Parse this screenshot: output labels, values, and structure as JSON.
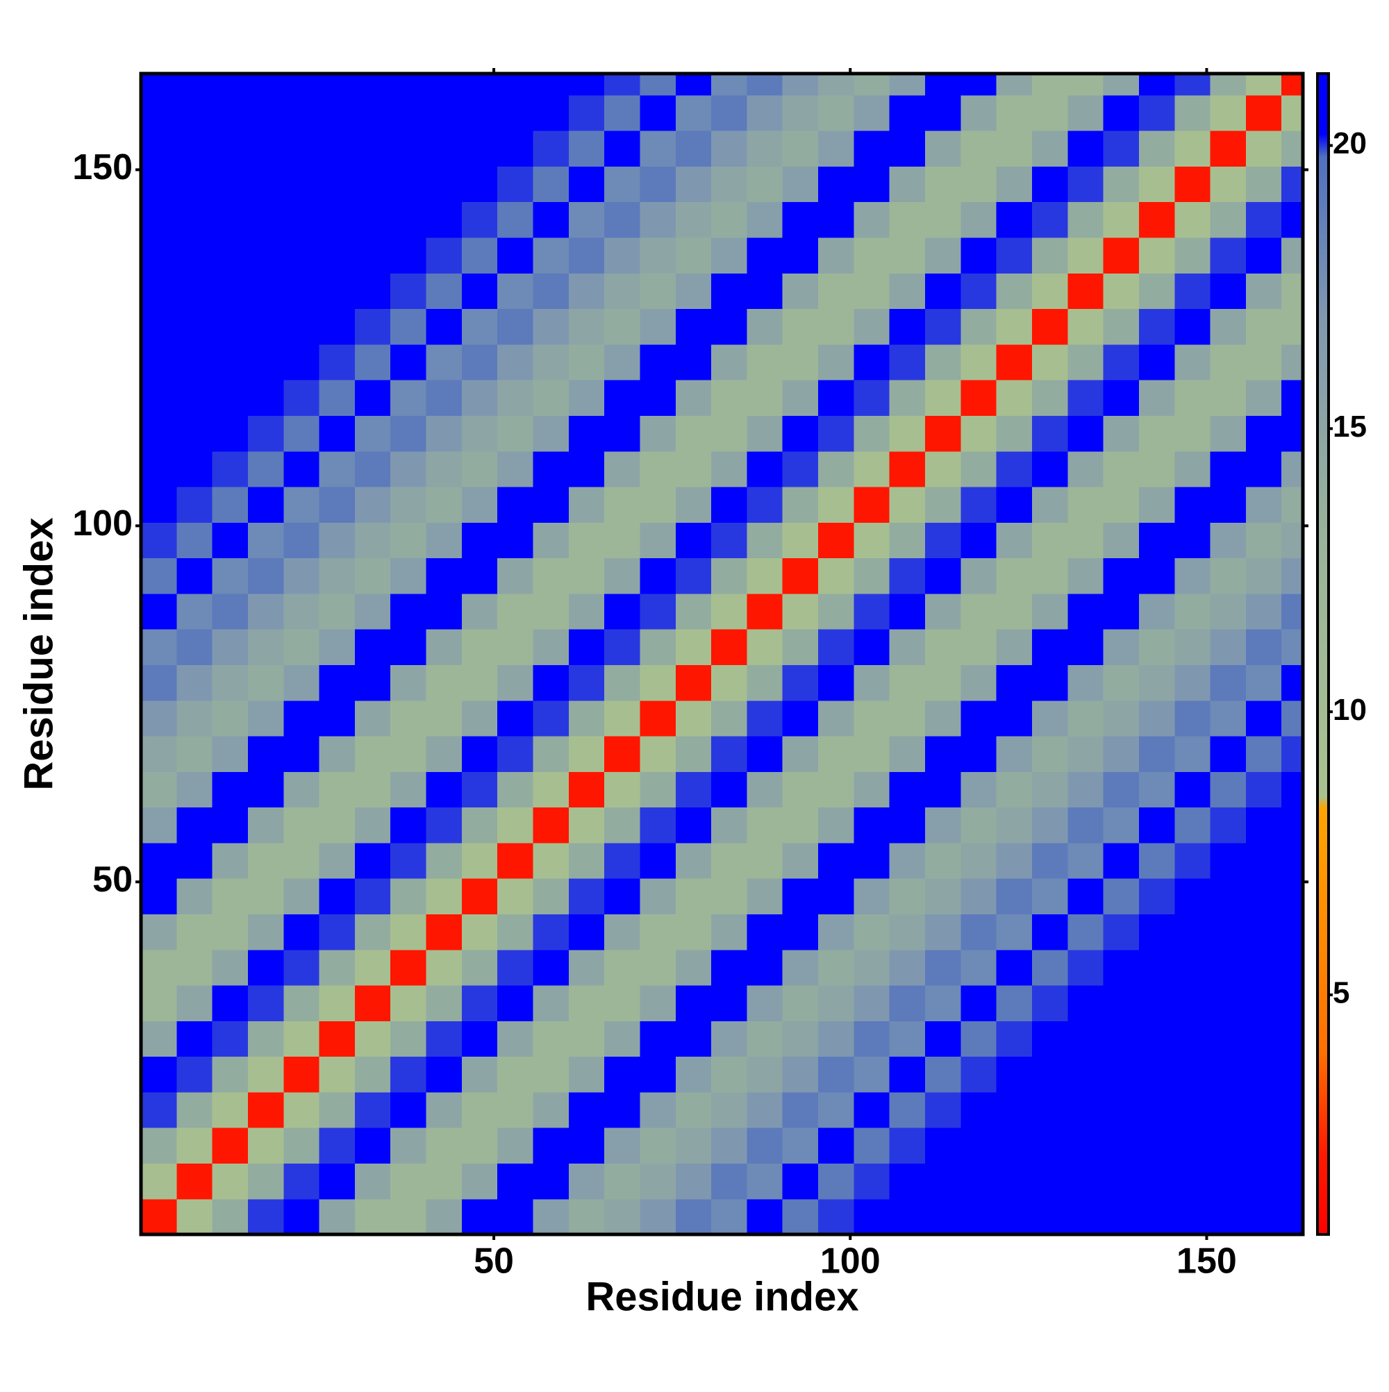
{
  "chart_data": {
    "type": "heatmap",
    "x_label": "Residue index",
    "y_label": "Residue index",
    "x": [
      3,
      8,
      13,
      18,
      23,
      28,
      33,
      38,
      43,
      48,
      53,
      58,
      63,
      68,
      73,
      78,
      83,
      88,
      93,
      98,
      103,
      108,
      113,
      118,
      123,
      128,
      133,
      138,
      143,
      148,
      153,
      158,
      163
    ],
    "y": [
      3,
      8,
      13,
      18,
      23,
      28,
      33,
      38,
      43,
      48,
      53,
      58,
      63,
      68,
      73,
      78,
      83,
      88,
      93,
      98,
      103,
      108,
      113,
      118,
      123,
      128,
      133,
      138,
      143,
      148,
      153,
      158,
      163
    ],
    "z": [
      [
        2,
        9,
        14,
        20,
        21,
        15,
        12,
        12,
        15,
        21,
        21,
        16,
        14,
        15,
        17,
        19,
        18,
        21,
        19,
        20,
        22,
        22,
        22,
        22,
        22,
        22,
        22,
        22,
        22,
        22,
        22,
        22,
        22
      ],
      [
        9,
        2,
        9,
        14,
        20,
        21,
        15,
        12,
        12,
        15,
        21,
        21,
        16,
        14,
        15,
        17,
        19,
        18,
        21,
        19,
        20,
        22,
        22,
        22,
        22,
        22,
        22,
        22,
        22,
        22,
        22,
        22,
        22
      ],
      [
        14,
        9,
        2,
        9,
        14,
        20,
        21,
        15,
        12,
        12,
        15,
        21,
        21,
        16,
        14,
        15,
        17,
        19,
        18,
        21,
        19,
        20,
        22,
        22,
        22,
        22,
        22,
        22,
        22,
        22,
        22,
        22,
        22
      ],
      [
        20,
        14,
        9,
        2,
        9,
        14,
        20,
        21,
        15,
        12,
        12,
        15,
        21,
        21,
        16,
        14,
        15,
        17,
        19,
        18,
        21,
        19,
        20,
        22,
        22,
        22,
        22,
        22,
        22,
        22,
        22,
        22,
        22
      ],
      [
        21,
        20,
        14,
        9,
        2,
        9,
        14,
        20,
        21,
        15,
        12,
        12,
        15,
        21,
        21,
        16,
        14,
        15,
        17,
        19,
        18,
        21,
        19,
        20,
        22,
        22,
        22,
        22,
        22,
        22,
        22,
        22,
        22
      ],
      [
        15,
        21,
        20,
        14,
        9,
        2,
        9,
        14,
        20,
        21,
        15,
        12,
        12,
        15,
        21,
        21,
        16,
        14,
        15,
        17,
        19,
        18,
        21,
        19,
        20,
        22,
        22,
        22,
        22,
        22,
        22,
        22,
        22
      ],
      [
        12,
        15,
        21,
        20,
        14,
        9,
        2,
        9,
        14,
        20,
        21,
        15,
        12,
        12,
        15,
        21,
        21,
        16,
        14,
        15,
        17,
        19,
        18,
        21,
        19,
        20,
        22,
        22,
        22,
        22,
        22,
        22,
        22
      ],
      [
        12,
        12,
        15,
        21,
        20,
        14,
        9,
        2,
        9,
        14,
        20,
        21,
        15,
        12,
        12,
        15,
        21,
        21,
        16,
        14,
        15,
        17,
        19,
        18,
        21,
        19,
        20,
        22,
        22,
        22,
        22,
        22,
        22
      ],
      [
        15,
        12,
        12,
        15,
        21,
        20,
        14,
        9,
        2,
        9,
        14,
        20,
        21,
        15,
        12,
        12,
        15,
        21,
        21,
        16,
        14,
        15,
        17,
        19,
        18,
        21,
        19,
        20,
        22,
        22,
        22,
        22,
        22
      ],
      [
        21,
        15,
        12,
        12,
        15,
        21,
        20,
        14,
        9,
        2,
        9,
        14,
        20,
        21,
        15,
        12,
        12,
        15,
        21,
        21,
        16,
        14,
        15,
        17,
        19,
        18,
        21,
        19,
        20,
        22,
        22,
        22,
        22
      ],
      [
        21,
        21,
        15,
        12,
        12,
        15,
        21,
        20,
        14,
        9,
        2,
        9,
        14,
        20,
        21,
        15,
        12,
        12,
        15,
        21,
        21,
        16,
        14,
        15,
        17,
        19,
        18,
        21,
        19,
        20,
        22,
        22,
        22
      ],
      [
        16,
        21,
        21,
        15,
        12,
        12,
        15,
        21,
        20,
        14,
        9,
        2,
        9,
        14,
        20,
        21,
        15,
        12,
        12,
        15,
        21,
        21,
        16,
        14,
        15,
        17,
        19,
        18,
        21,
        19,
        20,
        22,
        22
      ],
      [
        14,
        16,
        21,
        21,
        15,
        12,
        12,
        15,
        21,
        20,
        14,
        9,
        2,
        9,
        14,
        20,
        21,
        15,
        12,
        12,
        15,
        21,
        21,
        16,
        14,
        15,
        17,
        19,
        18,
        21,
        19,
        20,
        22
      ],
      [
        15,
        14,
        16,
        21,
        21,
        15,
        12,
        12,
        15,
        21,
        20,
        14,
        9,
        2,
        9,
        14,
        20,
        21,
        15,
        12,
        12,
        15,
        21,
        21,
        16,
        14,
        15,
        17,
        19,
        18,
        21,
        19,
        20
      ],
      [
        17,
        15,
        14,
        16,
        21,
        21,
        15,
        12,
        12,
        15,
        21,
        20,
        14,
        9,
        2,
        9,
        14,
        20,
        21,
        15,
        12,
        12,
        15,
        21,
        21,
        16,
        14,
        15,
        17,
        19,
        18,
        21,
        19
      ],
      [
        19,
        17,
        15,
        14,
        16,
        21,
        21,
        15,
        12,
        12,
        15,
        21,
        20,
        14,
        9,
        2,
        9,
        14,
        20,
        21,
        15,
        12,
        12,
        15,
        21,
        21,
        16,
        14,
        15,
        17,
        19,
        18,
        21
      ],
      [
        18,
        19,
        17,
        15,
        14,
        16,
        21,
        21,
        15,
        12,
        12,
        15,
        21,
        20,
        14,
        9,
        2,
        9,
        14,
        20,
        21,
        15,
        12,
        12,
        15,
        21,
        21,
        16,
        14,
        15,
        17,
        19,
        18
      ],
      [
        21,
        18,
        19,
        17,
        15,
        14,
        16,
        21,
        21,
        15,
        12,
        12,
        15,
        21,
        20,
        14,
        9,
        2,
        9,
        14,
        20,
        21,
        15,
        12,
        12,
        15,
        21,
        21,
        16,
        14,
        15,
        17,
        19
      ],
      [
        19,
        21,
        18,
        19,
        17,
        15,
        14,
        16,
        21,
        21,
        15,
        12,
        12,
        15,
        21,
        20,
        14,
        9,
        2,
        9,
        14,
        20,
        21,
        15,
        12,
        12,
        15,
        21,
        21,
        16,
        14,
        15,
        17
      ],
      [
        20,
        19,
        21,
        18,
        19,
        17,
        15,
        14,
        16,
        21,
        21,
        15,
        12,
        12,
        15,
        21,
        20,
        14,
        9,
        2,
        9,
        14,
        20,
        21,
        15,
        12,
        12,
        15,
        21,
        21,
        16,
        14,
        15
      ],
      [
        22,
        20,
        19,
        21,
        18,
        19,
        17,
        15,
        14,
        16,
        21,
        21,
        15,
        12,
        12,
        15,
        21,
        20,
        14,
        9,
        2,
        9,
        14,
        20,
        21,
        15,
        12,
        12,
        15,
        21,
        21,
        16,
        14
      ],
      [
        22,
        22,
        20,
        19,
        21,
        18,
        19,
        17,
        15,
        14,
        16,
        21,
        21,
        15,
        12,
        12,
        15,
        21,
        20,
        14,
        9,
        2,
        9,
        14,
        20,
        21,
        15,
        12,
        12,
        15,
        21,
        21,
        16
      ],
      [
        22,
        22,
        22,
        20,
        19,
        21,
        18,
        19,
        17,
        15,
        14,
        16,
        21,
        21,
        15,
        12,
        12,
        15,
        21,
        20,
        14,
        9,
        2,
        9,
        14,
        20,
        21,
        15,
        12,
        12,
        15,
        21,
        21
      ],
      [
        22,
        22,
        22,
        22,
        20,
        19,
        21,
        18,
        19,
        17,
        15,
        14,
        16,
        21,
        21,
        15,
        12,
        12,
        15,
        21,
        20,
        14,
        9,
        2,
        9,
        14,
        20,
        21,
        15,
        12,
        12,
        15,
        21
      ],
      [
        22,
        22,
        22,
        22,
        22,
        20,
        19,
        21,
        18,
        19,
        17,
        15,
        14,
        16,
        21,
        21,
        15,
        12,
        12,
        15,
        21,
        20,
        14,
        9,
        2,
        9,
        14,
        20,
        21,
        15,
        12,
        12,
        15
      ],
      [
        22,
        22,
        22,
        22,
        22,
        22,
        20,
        19,
        21,
        18,
        19,
        17,
        15,
        14,
        16,
        21,
        21,
        15,
        12,
        12,
        15,
        21,
        20,
        14,
        9,
        2,
        9,
        14,
        20,
        21,
        15,
        12,
        12
      ],
      [
        22,
        22,
        22,
        22,
        22,
        22,
        22,
        20,
        19,
        21,
        18,
        19,
        17,
        15,
        14,
        16,
        21,
        21,
        15,
        12,
        12,
        15,
        21,
        20,
        14,
        9,
        2,
        9,
        14,
        20,
        21,
        15,
        12
      ],
      [
        22,
        22,
        22,
        22,
        22,
        22,
        22,
        22,
        20,
        19,
        21,
        18,
        19,
        17,
        15,
        14,
        16,
        21,
        21,
        15,
        12,
        12,
        15,
        21,
        20,
        14,
        9,
        2,
        9,
        14,
        20,
        21,
        15
      ],
      [
        22,
        22,
        22,
        22,
        22,
        22,
        22,
        22,
        22,
        20,
        19,
        21,
        18,
        19,
        17,
        15,
        14,
        16,
        21,
        21,
        15,
        12,
        12,
        15,
        21,
        20,
        14,
        9,
        2,
        9,
        14,
        20,
        21
      ],
      [
        22,
        22,
        22,
        22,
        22,
        22,
        22,
        22,
        22,
        22,
        20,
        19,
        21,
        18,
        19,
        17,
        15,
        14,
        16,
        21,
        21,
        15,
        12,
        12,
        15,
        21,
        20,
        14,
        9,
        2,
        9,
        14,
        20
      ],
      [
        22,
        22,
        22,
        22,
        22,
        22,
        22,
        22,
        22,
        22,
        22,
        20,
        19,
        21,
        18,
        19,
        17,
        15,
        14,
        16,
        21,
        21,
        15,
        12,
        12,
        15,
        21,
        20,
        14,
        9,
        2,
        9,
        14
      ],
      [
        22,
        22,
        22,
        22,
        22,
        22,
        22,
        22,
        22,
        22,
        22,
        22,
        20,
        19,
        21,
        18,
        19,
        17,
        15,
        14,
        16,
        21,
        21,
        15,
        12,
        12,
        15,
        21,
        20,
        14,
        9,
        2,
        9
      ],
      [
        22,
        22,
        22,
        22,
        22,
        22,
        22,
        22,
        22,
        22,
        22,
        22,
        22,
        20,
        19,
        21,
        18,
        19,
        17,
        15,
        14,
        16,
        21,
        21,
        15,
        12,
        12,
        15,
        21,
        20,
        14,
        9,
        2
      ]
    ],
    "xlim": [
      0.5,
      163.5
    ],
    "ylim": [
      0.5,
      163.5
    ],
    "xticks": [
      50,
      100,
      150
    ],
    "yticks": [
      50,
      100,
      150
    ],
    "zlim": [
      0.77,
      21.27
    ],
    "zticks": [
      5,
      10,
      15,
      20
    ],
    "colorscale": [
      [
        0.77,
        "#ff0000"
      ],
      [
        2.2,
        "#ff1a00"
      ],
      [
        4,
        "#ff7000"
      ],
      [
        8.3,
        "#ffa500"
      ],
      [
        8.5,
        "#a9c18f"
      ],
      [
        13,
        "#9ab39a"
      ],
      [
        17,
        "#7f98b0"
      ],
      [
        19.8,
        "#5070c0"
      ],
      [
        20.2,
        "#0000ff"
      ],
      [
        21.27,
        "#0000ff"
      ]
    ]
  }
}
